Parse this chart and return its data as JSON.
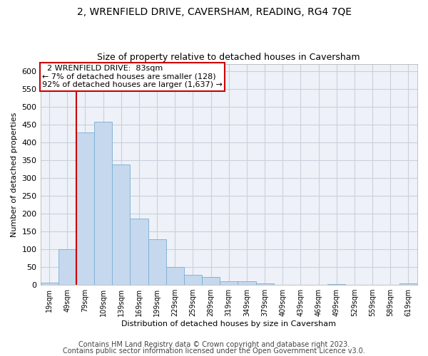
{
  "title": "2, WRENFIELD DRIVE, CAVERSHAM, READING, RG4 7QE",
  "subtitle": "Size of property relative to detached houses in Caversham",
  "xlabel": "Distribution of detached houses by size in Caversham",
  "ylabel": "Number of detached properties",
  "bar_color": "#c5d8ee",
  "bar_edge_color": "#7aadd4",
  "bar_edge_width": 0.6,
  "categories": [
    "19sqm",
    "49sqm",
    "79sqm",
    "109sqm",
    "139sqm",
    "169sqm",
    "199sqm",
    "229sqm",
    "259sqm",
    "289sqm",
    "319sqm",
    "349sqm",
    "379sqm",
    "409sqm",
    "439sqm",
    "469sqm",
    "499sqm",
    "529sqm",
    "559sqm",
    "589sqm",
    "619sqm"
  ],
  "values": [
    7,
    100,
    428,
    457,
    338,
    186,
    129,
    51,
    28,
    22,
    11,
    10,
    5,
    0,
    0,
    0,
    3,
    0,
    0,
    0,
    5
  ],
  "ylim": [
    0,
    620
  ],
  "yticks": [
    0,
    50,
    100,
    150,
    200,
    250,
    300,
    350,
    400,
    450,
    500,
    550,
    600
  ],
  "vline_color": "#cc0000",
  "vline_x_index": 2,
  "annotation_line1": "  2 WRENFIELD DRIVE:  83sqm",
  "annotation_line2": "← 7% of detached houses are smaller (128)",
  "annotation_line3": "92% of detached houses are larger (1,637) →",
  "annotation_box_color": "#ffffff",
  "annotation_box_edge": "#cc0000",
  "footer1": "Contains HM Land Registry data © Crown copyright and database right 2023.",
  "footer2": "Contains public sector information licensed under the Open Government Licence v3.0.",
  "bg_color": "#ffffff",
  "plot_bg_color": "#eef2f8",
  "grid_color": "#c8d0dc",
  "title_fontsize": 10,
  "subtitle_fontsize": 9,
  "axis_fontsize": 8,
  "footer_fontsize": 7,
  "annotation_fontsize": 8
}
